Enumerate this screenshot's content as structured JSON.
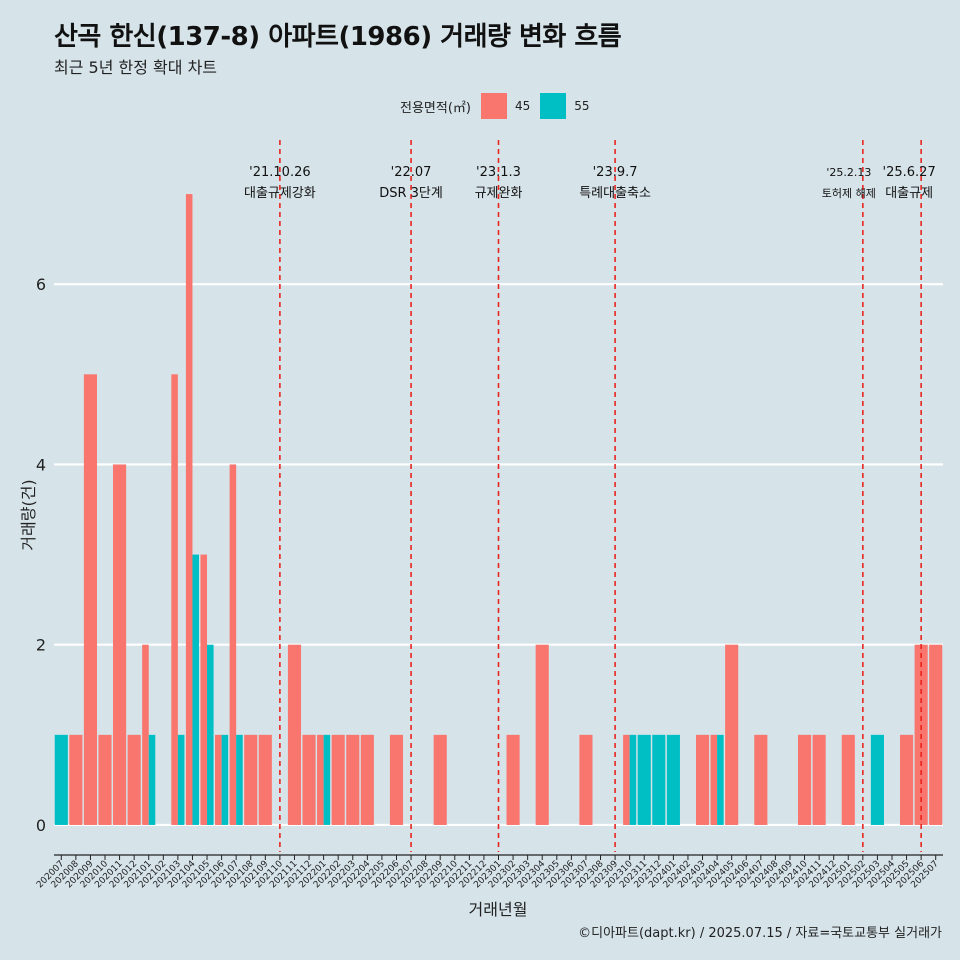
{
  "title": "산곡 한신(137-8) 아파트(1986) 거래량 변화 흐름",
  "subtitle": "최근 5년 한정 확대 차트",
  "caption": "©디아파트(dapt.kr) / 2025.07.15 / 자료=국토교통부 실거래가",
  "legend": {
    "title": "전용면적(㎡)",
    "items": [
      {
        "label": "45",
        "color": "#f8766d"
      },
      {
        "label": "55",
        "color": "#00bfc4"
      }
    ]
  },
  "chart_data": {
    "type": "bar",
    "xlabel": "거래년월",
    "ylabel": "거래량(건)",
    "ylim": [
      -0.3,
      7.6
    ],
    "yticks": [
      0,
      2,
      4,
      6
    ],
    "grid": true,
    "legend_position": "top",
    "categories": [
      "202007",
      "202008",
      "202009",
      "202010",
      "202011",
      "202012",
      "202101",
      "202102",
      "202103",
      "202104",
      "202105",
      "202106",
      "202107",
      "202108",
      "202109",
      "202110",
      "202111",
      "202112",
      "202201",
      "202202",
      "202203",
      "202204",
      "202205",
      "202206",
      "202207",
      "202208",
      "202209",
      "202210",
      "202211",
      "202212",
      "202301",
      "202302",
      "202303",
      "202304",
      "202305",
      "202306",
      "202307",
      "202308",
      "202309",
      "202310",
      "202311",
      "202312",
      "202401",
      "202402",
      "202403",
      "202404",
      "202405",
      "202406",
      "202407",
      "202408",
      "202409",
      "202410",
      "202411",
      "202412",
      "202501",
      "202502",
      "202503",
      "202504",
      "202505",
      "202506",
      "202507"
    ],
    "series": [
      {
        "name": "45",
        "color": "#f8766d",
        "values": [
          0,
          1,
          5,
          1,
          4,
          1,
          2,
          0,
          5,
          7,
          3,
          1,
          4,
          1,
          1,
          0,
          2,
          1,
          1,
          1,
          1,
          1,
          0,
          1,
          0,
          0,
          1,
          0,
          0,
          0,
          0,
          1,
          0,
          2,
          0,
          0,
          1,
          0,
          0,
          1,
          0,
          0,
          0,
          0,
          1,
          1,
          2,
          0,
          1,
          0,
          0,
          1,
          1,
          0,
          1,
          0,
          0,
          0,
          1,
          2,
          2
        ]
      },
      {
        "name": "55",
        "color": "#00bfc4",
        "values": [
          1,
          0,
          0,
          0,
          0,
          0,
          1,
          0,
          1,
          3,
          2,
          1,
          1,
          0,
          0,
          0,
          0,
          0,
          1,
          0,
          0,
          0,
          0,
          0,
          0,
          0,
          0,
          0,
          0,
          0,
          0,
          0,
          0,
          0,
          0,
          0,
          0,
          0,
          0,
          1,
          1,
          1,
          1,
          0,
          0,
          1,
          0,
          0,
          0,
          0,
          0,
          0,
          0,
          0,
          0,
          0,
          1,
          0,
          0,
          0,
          0
        ]
      }
    ],
    "events": [
      {
        "category": "202110",
        "date": "'21.10.26",
        "label": "대출규제강화"
      },
      {
        "category": "202207",
        "date": "'22.07",
        "label": "DSR 3단계"
      },
      {
        "category": "202301",
        "date": "'23.1.3",
        "label": "규제완화"
      },
      {
        "category": "202309",
        "date": "'23.9.7",
        "label": "특례대출축소"
      },
      {
        "category": "202502",
        "date": "'25.2.13",
        "label": "토허제 해제"
      },
      {
        "category": "202506",
        "date": "'25.6.27",
        "label": "대출규제"
      }
    ]
  }
}
